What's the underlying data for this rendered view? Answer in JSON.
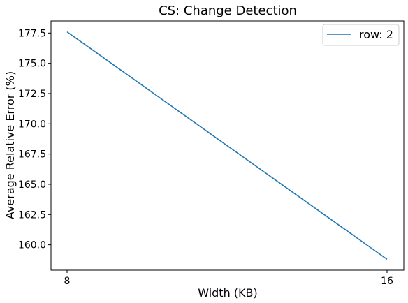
{
  "chart_data": {
    "type": "line",
    "title": "CS: Change Detection",
    "xlabel": "Width (KB)",
    "ylabel": "Average Relative Error (%)",
    "x": [
      8,
      16
    ],
    "xticks": [
      "8",
      "16"
    ],
    "yticks": [
      "160.0",
      "162.5",
      "165.0",
      "167.5",
      "170.0",
      "172.5",
      "175.0",
      "177.5"
    ],
    "ylim": [
      157.9,
      178.5
    ],
    "grid": false,
    "legend_position": "top-right",
    "series": [
      {
        "name": "row: 2",
        "values": [
          177.6,
          158.8
        ],
        "color": "#1f77b4"
      }
    ]
  }
}
